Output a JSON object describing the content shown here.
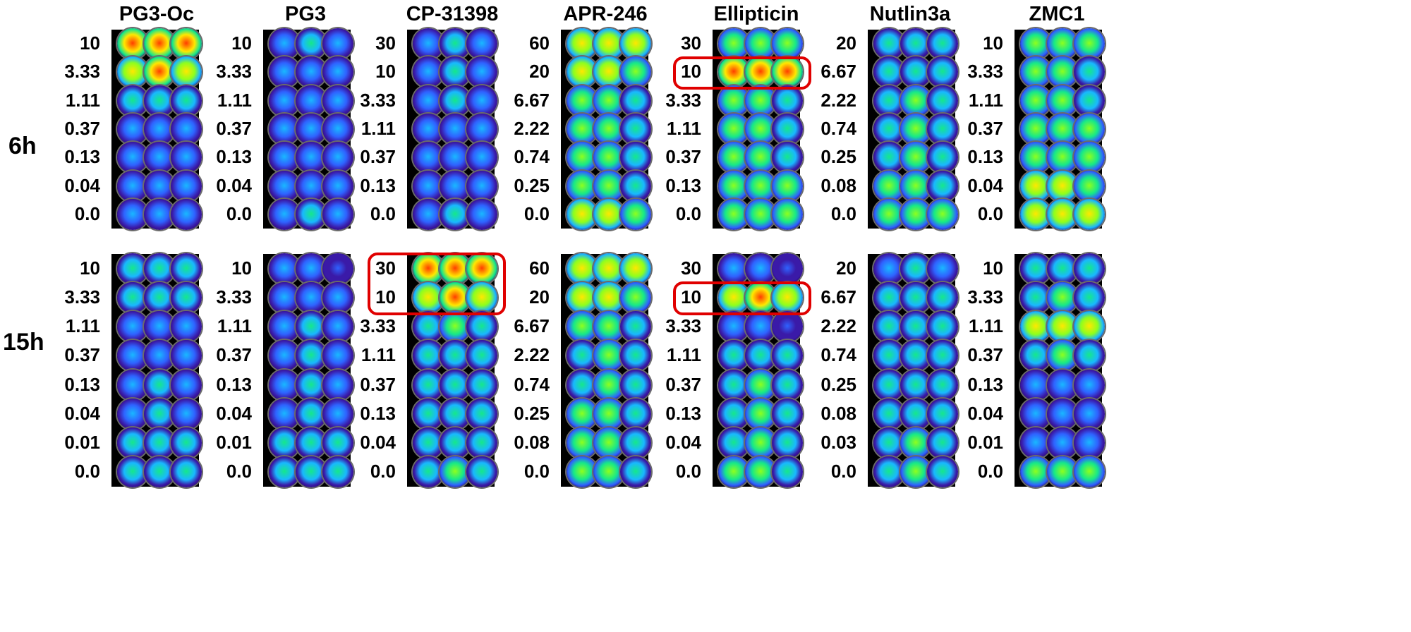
{
  "columns": [
    {
      "name": "PG3-Oc",
      "rows": [
        {
          "label": "6h",
          "conc": [
            "10",
            "3.33",
            "1.11",
            "0.37",
            "0.13",
            "0.04",
            "0.0"
          ],
          "intensity": [
            0.95,
            0.9,
            0.45,
            0.3,
            0.35,
            0.35,
            0.35
          ],
          "highlight": []
        },
        {
          "label": "15h",
          "conc": [
            "10",
            "3.33",
            "1.11",
            "0.37",
            "0.13",
            "0.04",
            "0.01",
            "0.0"
          ],
          "intensity": [
            0.5,
            0.45,
            0.3,
            0.3,
            0.4,
            0.4,
            0.45,
            0.5
          ],
          "highlight": []
        }
      ]
    },
    {
      "name": "PG3",
      "rows": [
        {
          "label": "6h",
          "conc": [
            "10",
            "3.33",
            "1.11",
            "0.37",
            "0.13",
            "0.04",
            "0.0"
          ],
          "intensity": [
            0.4,
            0.35,
            0.35,
            0.3,
            0.35,
            0.35,
            0.4
          ],
          "highlight": []
        },
        {
          "label": "15h",
          "conc": [
            "10",
            "3.33",
            "1.11",
            "0.37",
            "0.13",
            "0.04",
            "0.01",
            "0.0"
          ],
          "intensity": [
            0.25,
            0.35,
            0.4,
            0.4,
            0.4,
            0.4,
            0.45,
            0.45
          ],
          "highlight": []
        }
      ]
    },
    {
      "name": "CP-31398",
      "rows": [
        {
          "label": "6h",
          "conc": [
            "30",
            "10",
            "3.33",
            "1.11",
            "0.37",
            "0.13",
            "0.0"
          ],
          "intensity": [
            0.4,
            0.4,
            0.4,
            0.35,
            0.35,
            0.35,
            0.4
          ],
          "highlight": []
        },
        {
          "label": "15h",
          "conc": [
            "30",
            "10",
            "3.33",
            "1.11",
            "0.37",
            "0.13",
            "0.04",
            "0.0"
          ],
          "intensity": [
            0.95,
            0.9,
            0.55,
            0.5,
            0.5,
            0.5,
            0.5,
            0.55
          ],
          "highlight": [
            0,
            1
          ]
        }
      ]
    },
    {
      "name": "APR-246",
      "rows": [
        {
          "label": "6h",
          "conc": [
            "60",
            "20",
            "6.67",
            "2.22",
            "0.74",
            "0.25",
            "0.0"
          ],
          "intensity": [
            0.85,
            0.75,
            0.6,
            0.6,
            0.6,
            0.6,
            0.75
          ],
          "highlight": []
        },
        {
          "label": "15h",
          "conc": [
            "60",
            "20",
            "6.67",
            "2.22",
            "0.74",
            "0.25",
            "0.08",
            "0.0"
          ],
          "intensity": [
            0.85,
            0.75,
            0.6,
            0.55,
            0.55,
            0.6,
            0.6,
            0.6
          ],
          "highlight": []
        }
      ]
    },
    {
      "name": "Ellipticin",
      "rows": [
        {
          "label": "6h",
          "conc": [
            "30",
            "10",
            "3.33",
            "1.11",
            "0.37",
            "0.13",
            "0.0"
          ],
          "intensity": [
            0.7,
            0.95,
            0.6,
            0.6,
            0.6,
            0.65,
            0.7
          ],
          "highlight": [
            1
          ]
        },
        {
          "label": "15h",
          "conc": [
            "30",
            "10",
            "3.33",
            "1.11",
            "0.37",
            "0.13",
            "0.04",
            "0.0"
          ],
          "intensity": [
            0.25,
            0.9,
            0.25,
            0.5,
            0.55,
            0.55,
            0.55,
            0.6
          ],
          "highlight": [
            1
          ]
        }
      ]
    },
    {
      "name": "Nutlin3a",
      "rows": [
        {
          "label": "6h",
          "conc": [
            "20",
            "6.67",
            "2.22",
            "0.74",
            "0.25",
            "0.08",
            "0.0"
          ],
          "intensity": [
            0.5,
            0.5,
            0.55,
            0.55,
            0.55,
            0.6,
            0.65
          ],
          "highlight": []
        },
        {
          "label": "15h",
          "conc": [
            "20",
            "6.67",
            "2.22",
            "0.74",
            "0.25",
            "0.08",
            "0.03",
            "0.0"
          ],
          "intensity": [
            0.4,
            0.45,
            0.5,
            0.5,
            0.5,
            0.5,
            0.55,
            0.55
          ],
          "highlight": []
        }
      ]
    },
    {
      "name": "ZMC1",
      "rows": [
        {
          "label": "6h",
          "conc": [
            "10",
            "3.33",
            "1.11",
            "0.37",
            "0.13",
            "0.04",
            "0.0"
          ],
          "intensity": [
            0.7,
            0.6,
            0.6,
            0.65,
            0.7,
            0.75,
            0.8
          ],
          "highlight": []
        },
        {
          "label": "15h",
          "conc": [
            "10",
            "3.33",
            "1.11",
            "0.37",
            "0.13",
            "0.04",
            "0.01",
            "0.0"
          ],
          "intensity": [
            0.5,
            0.55,
            0.8,
            0.55,
            0.35,
            0.35,
            0.3,
            0.7
          ],
          "highlight": []
        }
      ]
    }
  ],
  "row_labels": [
    "6h",
    "15h"
  ],
  "highlight_color": "#e00000"
}
